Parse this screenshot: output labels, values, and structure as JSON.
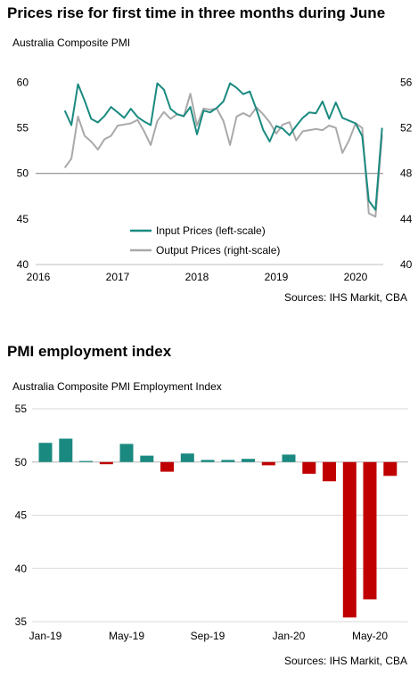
{
  "chart_data": [
    {
      "type": "line",
      "title": "Prices rise for first time in three months during June",
      "subtitle": "Australia Composite PMI",
      "source": "Sources: IHS Markit, CBA",
      "x_ticks": [
        "2016",
        "2017",
        "2018",
        "2019",
        "2020"
      ],
      "y_left_ticks": [
        "40",
        "45",
        "50",
        "55",
        "60"
      ],
      "y_right_ticks": [
        "40",
        "44",
        "48",
        "52",
        "56"
      ],
      "y_left_lim": [
        40,
        62
      ],
      "y_right_lim": [
        40,
        57.6
      ],
      "reference_line": 50,
      "colors": {
        "input": "#1a8a80",
        "output": "#a9a9a9",
        "ref": "#7f7f7f"
      },
      "series": [
        {
          "name": "Input Prices (left-scale)",
          "axis": "left",
          "start": "2016-05",
          "values": [
            56.9,
            55.3,
            59.8,
            58.0,
            56.0,
            55.6,
            56.3,
            57.3,
            56.7,
            56.1,
            57.1,
            56.2,
            55.7,
            55.3,
            59.9,
            59.2,
            57.1,
            56.5,
            56.3,
            57.3,
            54.3,
            56.9,
            56.7,
            57.2,
            57.9,
            59.9,
            59.4,
            58.7,
            59.0,
            57.0,
            54.8,
            53.5,
            55.2,
            54.9,
            54.2,
            55.2,
            56.1,
            56.7,
            56.6,
            57.9,
            56.0,
            57.8,
            56.1,
            55.8,
            55.5,
            54.1,
            47.0,
            46.0,
            55.0
          ]
        },
        {
          "name": "Output Prices (right-scale)",
          "axis": "right",
          "start": "2016-05",
          "values": [
            48.5,
            49.3,
            53.0,
            51.3,
            50.8,
            50.1,
            51.0,
            51.3,
            52.2,
            52.3,
            52.4,
            52.7,
            51.7,
            50.5,
            52.6,
            53.4,
            52.8,
            53.2,
            53.0,
            55.0,
            52.2,
            53.7,
            53.6,
            53.7,
            52.6,
            50.5,
            53.0,
            53.3,
            53.0,
            53.8,
            53.2,
            52.5,
            51.5,
            52.3,
            52.5,
            50.9,
            51.7,
            51.8,
            51.9,
            51.8,
            52.2,
            52.0,
            49.8,
            50.9,
            52.4,
            52.0,
            44.5,
            44.2,
            51.4
          ]
        }
      ]
    },
    {
      "type": "bar",
      "title": "PMI employment index",
      "subtitle": "Australia Composite PMI Employment  Index",
      "source": "Sources: IHS Markit, CBA",
      "baseline": 50,
      "ylim": [
        35,
        55
      ],
      "y_ticks": [
        "35",
        "40",
        "45",
        "50",
        "55"
      ],
      "x_ticks": [
        "Jan-19",
        "May-19",
        "Sep-19",
        "Jan-20",
        "May-20"
      ],
      "colors": {
        "positive": "#1a8a80",
        "negative": "#c00000",
        "grid": "#d9d9d9"
      },
      "categories": [
        "Jan-19",
        "Feb-19",
        "Mar-19",
        "Apr-19",
        "May-19",
        "Jun-19",
        "Jul-19",
        "Aug-19",
        "Sep-19",
        "Oct-19",
        "Nov-19",
        "Dec-19",
        "Jan-20",
        "Feb-20",
        "Mar-20",
        "Apr-20",
        "May-20",
        "Jun-20"
      ],
      "values": [
        51.8,
        52.2,
        50.1,
        49.8,
        51.7,
        50.6,
        49.1,
        50.8,
        50.2,
        50.2,
        50.3,
        49.7,
        50.7,
        48.9,
        48.2,
        35.4,
        37.1,
        48.7
      ]
    }
  ]
}
